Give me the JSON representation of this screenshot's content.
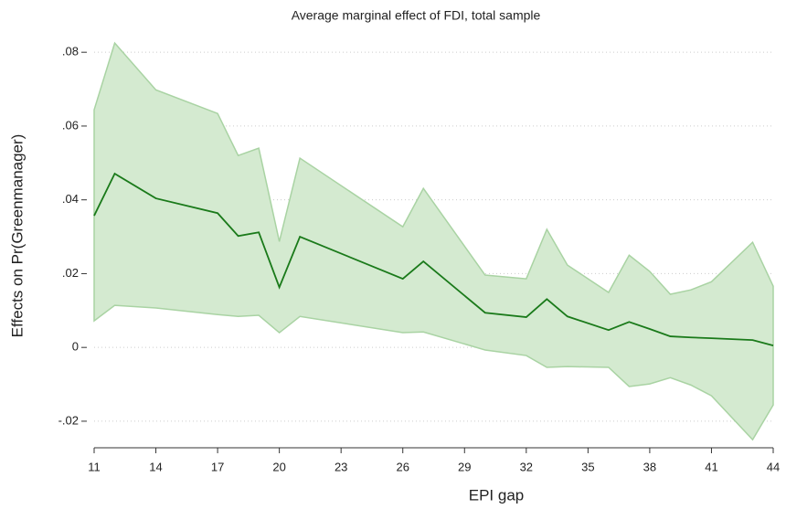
{
  "chart_data": {
    "type": "line",
    "title": "Average marginal effect of FDI, total sample",
    "x_label": "EPI gap",
    "y_label": "Effects on Pr(Greenmanager)",
    "x": [
      11,
      12,
      14,
      17,
      18,
      19,
      20,
      21,
      26,
      27,
      30,
      32,
      33,
      34,
      36,
      37,
      38,
      39,
      40,
      41,
      43,
      44
    ],
    "values": [
      0.0357,
      0.0471,
      0.0404,
      0.0364,
      0.0302,
      0.0312,
      0.0163,
      0.03,
      0.0186,
      0.0233,
      0.0094,
      0.0082,
      0.0131,
      0.0084,
      0.0047,
      0.0069,
      0.005,
      0.003,
      0.0027,
      0.0025,
      0.002,
      0.0005
    ],
    "upper": [
      0.0644,
      0.0825,
      0.0698,
      0.0634,
      0.052,
      0.054,
      0.0287,
      0.0513,
      0.0327,
      0.0431,
      0.0196,
      0.0186,
      0.032,
      0.0223,
      0.0149,
      0.025,
      0.0206,
      0.0144,
      0.0156,
      0.0178,
      0.0285,
      0.0166
    ],
    "lower": [
      0.0072,
      0.0114,
      0.0107,
      0.0089,
      0.0084,
      0.0087,
      0.004,
      0.0084,
      0.004,
      0.0042,
      -0.0007,
      -0.0022,
      -0.0054,
      -0.0052,
      -0.0054,
      -0.0106,
      -0.0099,
      -0.0082,
      -0.0102,
      -0.0131,
      -0.025,
      -0.0156
    ],
    "color": "#1a7a1a",
    "band_color": "#d4ead0",
    "band_edge_color": "#a9d3a3",
    "xlim": [
      11,
      44
    ],
    "xticks": [
      11,
      14,
      17,
      20,
      23,
      26,
      29,
      32,
      35,
      38,
      41,
      44
    ],
    "ylim": [
      -0.0272,
      0.085
    ],
    "yticks": [
      {
        "value": -0.02,
        "label": "-.02"
      },
      0,
      {
        "value": 0.02,
        "label": ".02"
      },
      {
        "value": 0.04,
        "label": ".04"
      },
      {
        "value": 0.06,
        "label": ".06"
      },
      {
        "value": 0.08,
        "label": ".08"
      }
    ],
    "grid": true
  }
}
